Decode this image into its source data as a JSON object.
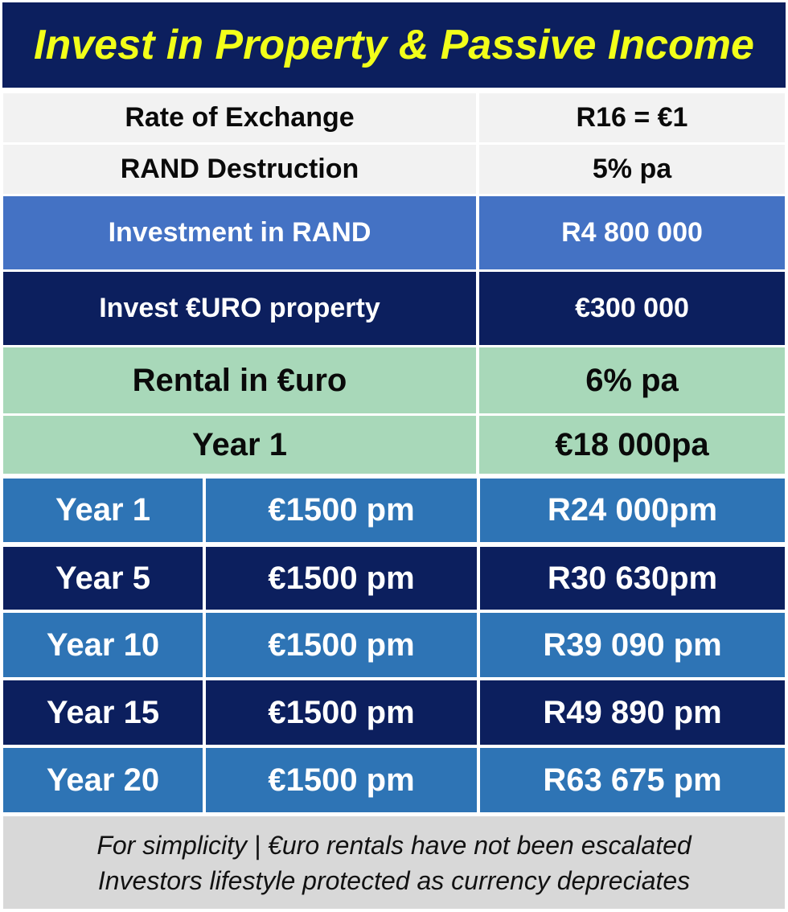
{
  "title": "Invest in Property & Passive Income",
  "summary": [
    {
      "label": "Rate of  Exchange",
      "value": "R16 = €1"
    },
    {
      "label": "RAND Destruction",
      "value": "5% pa"
    },
    {
      "label": "Investment in RAND",
      "value": "R4 800 000"
    },
    {
      "label": "Invest €URO property",
      "value": "€300 000"
    },
    {
      "label": "Rental in €uro",
      "value": "6% pa"
    },
    {
      "label": "Year 1",
      "value": "€18 000pa"
    }
  ],
  "years": [
    {
      "year": "Year 1",
      "euro": "€1500 pm",
      "rand": "R24 000pm"
    },
    {
      "year": "Year 5",
      "euro": "€1500 pm",
      "rand": "R30 630pm"
    },
    {
      "year": "Year 10",
      "euro": "€1500 pm",
      "rand": "R39 090 pm"
    },
    {
      "year": "Year 15",
      "euro": "€1500 pm",
      "rand": "R49 890 pm"
    },
    {
      "year": "Year 20",
      "euro": "€1500 pm",
      "rand": "R63 675 pm"
    }
  ],
  "footer": {
    "line1": "For simplicity | €uro rentals have not been escalated",
    "line2": "Investors lifestyle protected as currency depreciates"
  }
}
